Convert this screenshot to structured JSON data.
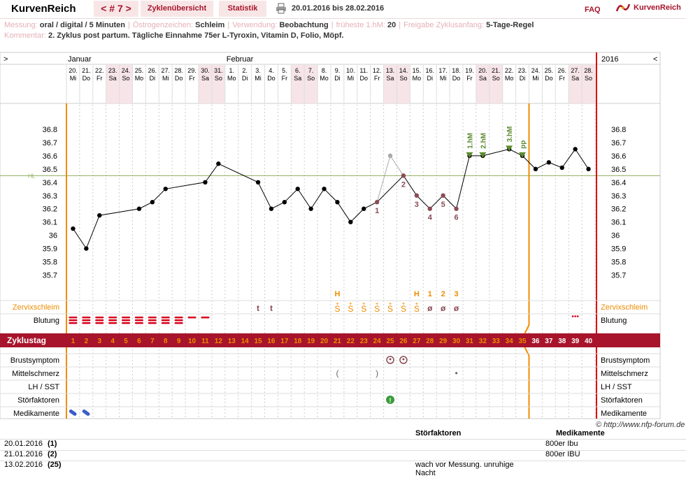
{
  "header": {
    "app_title": "KurvenReich",
    "cycle_nav": "< # 7 >",
    "tab_overview": "Zyklenübersicht",
    "tab_stats": "Statistik",
    "date_range": "20.01.2016 bis 28.02.2016",
    "faq": "FAQ",
    "logo_text": "KurvenReich",
    "icons": [
      "printer-icon",
      "kurvenreich-logo-icon"
    ]
  },
  "info": {
    "messung_label": "Messung:",
    "messung_value": "oral / digital / 5 Minuten",
    "oestrogen_label": "Östrogenzeichen:",
    "oestrogen_value": "Schleim",
    "verwendung_label": "Verwendung:",
    "verwendung_value": "Beobachtung",
    "hm_label": "früheste 1.hM:",
    "hm_value": "20",
    "freigabe_label": "Freigabe Zyklusanfang:",
    "freigabe_value": "5-Tage-Regel",
    "kommentar_label": "Kommentar:",
    "kommentar_value": "2. Zyklus post partum. Tägliche Einnahme 75er L-Tyroxin, Vitamin D, Folio, Möpf."
  },
  "chart_data": {
    "type": "line",
    "nav_left": ">",
    "nav_right": "<",
    "month_labels": [
      {
        "day_index": 0,
        "text": "Januar"
      },
      {
        "day_index": 12,
        "text": "Februar"
      }
    ],
    "year_label": "2016",
    "dates": [
      "20.",
      "21.",
      "22.",
      "23.",
      "24.",
      "25.",
      "26.",
      "27.",
      "28.",
      "29.",
      "30.",
      "31.",
      "1.",
      "2.",
      "3.",
      "4.",
      "5.",
      "6.",
      "7.",
      "8.",
      "9.",
      "10.",
      "11.",
      "12.",
      "13.",
      "14.",
      "15.",
      "16.",
      "17.",
      "18.",
      "19.",
      "20.",
      "21.",
      "22.",
      "23.",
      "24.",
      "25.",
      "26.",
      "27.",
      "28."
    ],
    "weekdays": [
      "Mi",
      "Do",
      "Fr",
      "Sa",
      "So",
      "Mo",
      "Di",
      "Mi",
      "Do",
      "Fr",
      "Sa",
      "So",
      "Mo",
      "Di",
      "Mi",
      "Do",
      "Fr",
      "Sa",
      "So",
      "Mo",
      "Di",
      "Mi",
      "Do",
      "Fr",
      "Sa",
      "So",
      "Mo",
      "Di",
      "Mi",
      "Do",
      "Fr",
      "Sa",
      "So",
      "Mo",
      "Di",
      "Mi",
      "Do",
      "Fr",
      "Sa",
      "So"
    ],
    "cycle_days": [
      1,
      2,
      3,
      4,
      5,
      6,
      7,
      8,
      9,
      10,
      11,
      12,
      13,
      14,
      15,
      16,
      17,
      18,
      19,
      20,
      21,
      22,
      23,
      24,
      25,
      26,
      27,
      28,
      29,
      30,
      31,
      32,
      33,
      34,
      35,
      36,
      37,
      38,
      39,
      40
    ],
    "y_ticks": [
      "36.8",
      "36.7",
      "36.6",
      "36.5",
      "36.4",
      "36.3",
      "36.2",
      "36.1",
      "36",
      "35.9",
      "35.8",
      "35.7"
    ],
    "ylim": [
      35.65,
      36.9
    ],
    "temps": [
      36.05,
      35.9,
      36.15,
      null,
      null,
      36.2,
      36.25,
      36.35,
      null,
      null,
      36.4,
      36.54,
      null,
      null,
      36.4,
      36.2,
      36.25,
      36.35,
      36.2,
      36.35,
      36.25,
      36.1,
      36.2,
      36.25,
      36.6,
      36.45,
      36.3,
      36.2,
      36.3,
      36.2,
      36.6,
      36.6,
      null,
      36.65,
      36.6,
      36.5,
      36.55,
      36.51,
      36.65,
      36.5
    ],
    "hl_value": 36.45,
    "hl_label": "HL",
    "low_count_labels": [
      {
        "day_index": 23,
        "text": "1"
      },
      {
        "day_index": 25,
        "text": "2"
      },
      {
        "day_index": 26,
        "text": "3"
      },
      {
        "day_index": 27,
        "text": "4"
      },
      {
        "day_index": 28,
        "text": "5"
      },
      {
        "day_index": 29,
        "text": "6"
      }
    ],
    "high_labels": [
      {
        "day_index": 30,
        "text": "1.hM"
      },
      {
        "day_index": 31,
        "text": "2.hM"
      },
      {
        "day_index": 33,
        "text": "3.hM"
      },
      {
        "day_index": 34,
        "text": "pp"
      }
    ],
    "mucus_peak_labels": [
      {
        "day_index": 20,
        "text": "H"
      },
      {
        "day_index": 26,
        "text": "H"
      },
      {
        "day_index": 27,
        "text": "1"
      },
      {
        "day_index": 28,
        "text": "2"
      },
      {
        "day_index": 29,
        "text": "3"
      }
    ],
    "mucus": [
      "",
      "",
      "",
      "",
      "",
      "",
      "",
      "",
      "",
      "",
      "",
      "",
      "",
      "",
      "t",
      "t",
      "",
      "",
      "",
      "",
      "S+",
      "S+",
      "S+",
      "S+",
      "S+",
      "S+",
      "S+",
      "ø",
      "ø",
      "ø",
      "",
      "",
      "",
      "",
      "",
      "",
      "",
      "",
      "",
      ""
    ],
    "bleeding_days": 11,
    "spotting_days": [
      38
    ],
    "rows": {
      "zervix": "Zervixschleim",
      "blutung": "Blutung",
      "zyklustag": "Zyklustag",
      "brust": "Brustsymptom",
      "mittel": "Mittelschmerz",
      "lh": "LH / SST",
      "stoer": "Störfaktoren",
      "medi": "Medikamente"
    },
    "brust_days": [
      24,
      25
    ],
    "mittel_marks": [
      {
        "day_index": 20,
        "text": "("
      },
      {
        "day_index": 23,
        "text": ")"
      },
      {
        "day_index": 29,
        "text": "•"
      }
    ],
    "stoer_days": [
      24
    ],
    "medi_days": [
      0,
      1
    ],
    "xlabel": "",
    "ylabel": ""
  },
  "copyright": "© http://www.nfp-forum.de",
  "table": {
    "headers": {
      "stoerfaktoren": "Störfaktoren",
      "medikamente": "Medikamente"
    },
    "rows": [
      {
        "date": "20.01.2016",
        "day": "(1)",
        "stoer": "",
        "medi": "800er Ibu"
      },
      {
        "date": "21.01.2016",
        "day": "(2)",
        "stoer": "",
        "medi": "800er IBU"
      },
      {
        "date": "13.02.2016",
        "day": "(25)",
        "stoer": "wach vor Messung. unruhige Nacht",
        "medi": ""
      }
    ]
  },
  "colors": {
    "brand": "#a7142b",
    "orange": "#f08c00",
    "weekend": "#f6e4e8",
    "curve": "#000000",
    "low_mark": "#8a4b55",
    "high_mark": "#5b8a2e",
    "bleeding": "#d8001a"
  }
}
